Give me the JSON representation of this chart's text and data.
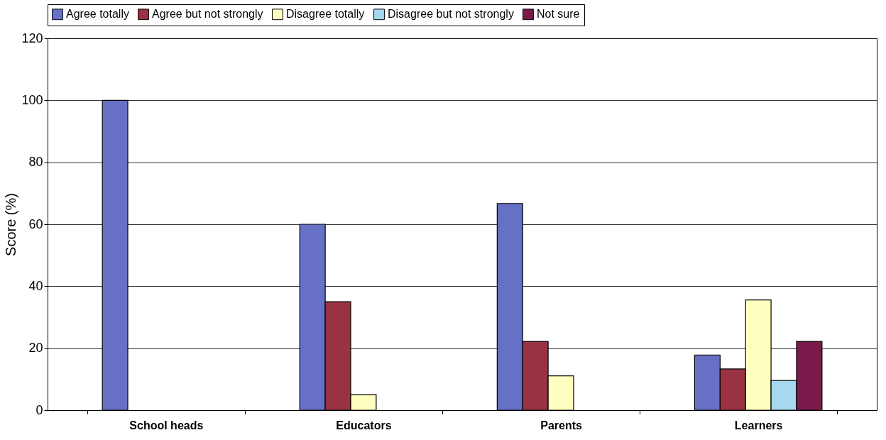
{
  "chart_data": {
    "type": "bar",
    "ylabel": "Score (%)",
    "categories": [
      "School heads",
      "Educators",
      "Parents",
      "Learners"
    ],
    "series": [
      {
        "name": "Agree totally",
        "color": "#6670c4",
        "values": [
          100,
          60,
          66.7,
          17.8
        ]
      },
      {
        "name": "Agree but not strongly",
        "color": "#993344",
        "values": [
          null,
          35,
          22.2,
          13.3
        ]
      },
      {
        "name": "Disagree totally",
        "color": "#ffffc0",
        "values": [
          null,
          5,
          11.1,
          35.6
        ]
      },
      {
        "name": "Disagree but not strongly",
        "color": "#a6d8f0",
        "values": [
          null,
          null,
          null,
          9.6
        ]
      },
      {
        "name": "Not sure",
        "color": "#7a1a4a",
        "values": [
          null,
          null,
          null,
          22.2
        ]
      }
    ],
    "ylim": [
      0,
      120
    ],
    "yticks": [
      0,
      20,
      40,
      60,
      80,
      100,
      120
    ],
    "grid": "y",
    "legend": "top"
  }
}
